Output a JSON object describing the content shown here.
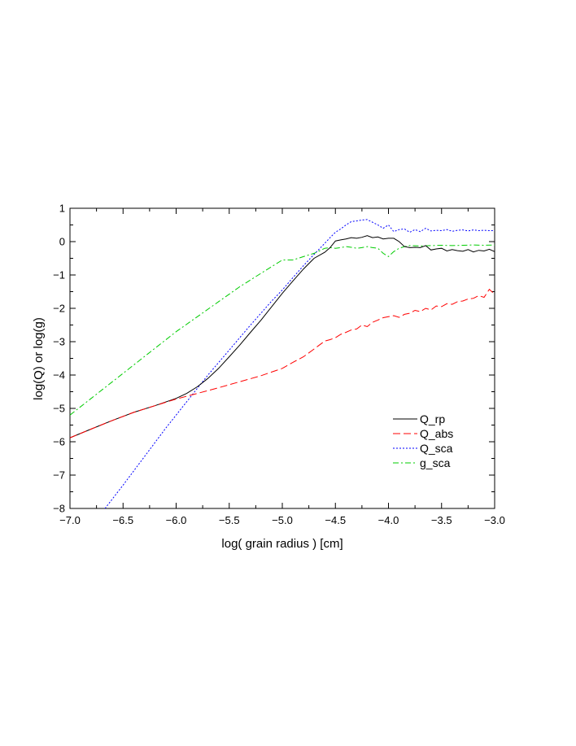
{
  "chart_data": {
    "type": "line",
    "xlabel": "log( grain radius ) [cm]",
    "ylabel": "log(Q)  or  log(g)",
    "xlim": [
      -7.0,
      -3.0
    ],
    "ylim": [
      -8,
      1
    ],
    "x_ticks": [
      -7.0,
      -6.5,
      -6.0,
      -5.5,
      -5.0,
      -4.5,
      -4.0,
      -3.5,
      -3.0
    ],
    "x_tick_labels": [
      "−7.0",
      "−6.5",
      "−6.0",
      "−5.5",
      "−5.0",
      "−4.5",
      "−4.0",
      "−3.5",
      "−3.0"
    ],
    "y_ticks": [
      1,
      0,
      -1,
      -2,
      -3,
      -4,
      -5,
      -6,
      -7,
      -8
    ],
    "y_tick_labels": [
      "1",
      "0",
      "−1",
      "−2",
      "−3",
      "−4",
      "−5",
      "−6",
      "−7",
      "−8"
    ],
    "grid": false,
    "legend_position": "lower-right",
    "series": [
      {
        "name": "Q_rp",
        "color": "#000000",
        "dash": "solid",
        "x": [
          -7.0,
          -6.8,
          -6.6,
          -6.4,
          -6.2,
          -6.0,
          -5.9,
          -5.8,
          -5.7,
          -5.6,
          -5.5,
          -5.4,
          -5.3,
          -5.2,
          -5.1,
          -5.0,
          -4.9,
          -4.8,
          -4.7,
          -4.6,
          -4.55,
          -4.5,
          -4.45,
          -4.4,
          -4.35,
          -4.3,
          -4.25,
          -4.2,
          -4.15,
          -4.1,
          -4.05,
          -4.0,
          -3.95,
          -3.9,
          -3.85,
          -3.8,
          -3.75,
          -3.7,
          -3.65,
          -3.6,
          -3.55,
          -3.5,
          -3.45,
          -3.4,
          -3.35,
          -3.3,
          -3.25,
          -3.2,
          -3.15,
          -3.1,
          -3.05,
          -3.0
        ],
        "y": [
          -5.88,
          -5.62,
          -5.36,
          -5.12,
          -4.92,
          -4.7,
          -4.55,
          -4.35,
          -4.1,
          -3.8,
          -3.45,
          -3.1,
          -2.72,
          -2.35,
          -1.95,
          -1.55,
          -1.18,
          -0.82,
          -0.5,
          -0.32,
          -0.18,
          0.02,
          0.05,
          0.08,
          0.12,
          0.1,
          0.13,
          0.18,
          0.12,
          0.14,
          0.08,
          0.1,
          0.1,
          0.0,
          -0.15,
          -0.18,
          -0.17,
          -0.18,
          -0.12,
          -0.25,
          -0.22,
          -0.2,
          -0.28,
          -0.24,
          -0.27,
          -0.29,
          -0.24,
          -0.31,
          -0.26,
          -0.28,
          -0.23,
          -0.3
        ]
      },
      {
        "name": "Q_abs",
        "color": "#ff0000",
        "dash": "long-dash",
        "x": [
          -7.0,
          -6.8,
          -6.6,
          -6.4,
          -6.2,
          -6.0,
          -5.8,
          -5.6,
          -5.4,
          -5.2,
          -5.0,
          -4.9,
          -4.8,
          -4.7,
          -4.6,
          -4.55,
          -4.5,
          -4.45,
          -4.4,
          -4.35,
          -4.3,
          -4.25,
          -4.2,
          -4.15,
          -4.1,
          -4.05,
          -4.0,
          -3.95,
          -3.9,
          -3.85,
          -3.8,
          -3.75,
          -3.7,
          -3.65,
          -3.6,
          -3.55,
          -3.5,
          -3.45,
          -3.4,
          -3.35,
          -3.3,
          -3.25,
          -3.2,
          -3.15,
          -3.1,
          -3.05,
          -3.0
        ],
        "y": [
          -5.88,
          -5.62,
          -5.36,
          -5.12,
          -4.92,
          -4.72,
          -4.55,
          -4.38,
          -4.2,
          -4.02,
          -3.8,
          -3.62,
          -3.45,
          -3.22,
          -2.98,
          -2.94,
          -2.88,
          -2.78,
          -2.72,
          -2.65,
          -2.62,
          -2.5,
          -2.55,
          -2.42,
          -2.35,
          -2.28,
          -2.25,
          -2.22,
          -2.27,
          -2.18,
          -2.15,
          -2.06,
          -2.1,
          -2.0,
          -2.05,
          -1.93,
          -1.95,
          -1.86,
          -1.88,
          -1.8,
          -1.78,
          -1.72,
          -1.7,
          -1.62,
          -1.67,
          -1.43,
          -1.58
        ]
      },
      {
        "name": "Q_sca",
        "color": "#0000ff",
        "dash": "dotted",
        "x": [
          -6.67,
          -6.5,
          -6.3,
          -6.1,
          -5.9,
          -5.7,
          -5.5,
          -5.3,
          -5.1,
          -5.0,
          -4.9,
          -4.8,
          -4.7,
          -4.6,
          -4.55,
          -4.5,
          -4.45,
          -4.4,
          -4.35,
          -4.3,
          -4.25,
          -4.2,
          -4.15,
          -4.1,
          -4.05,
          -4.0,
          -3.95,
          -3.9,
          -3.85,
          -3.8,
          -3.75,
          -3.7,
          -3.65,
          -3.6,
          -3.55,
          -3.5,
          -3.45,
          -3.4,
          -3.35,
          -3.3,
          -3.25,
          -3.2,
          -3.15,
          -3.1,
          -3.05,
          -3.0
        ],
        "y": [
          -8.0,
          -7.3,
          -6.45,
          -5.6,
          -4.8,
          -4.0,
          -3.25,
          -2.5,
          -1.78,
          -1.45,
          -1.08,
          -0.72,
          -0.38,
          -0.05,
          0.12,
          0.28,
          0.38,
          0.5,
          0.6,
          0.62,
          0.65,
          0.66,
          0.58,
          0.5,
          0.4,
          0.5,
          0.3,
          0.36,
          0.38,
          0.28,
          0.36,
          0.3,
          0.4,
          0.32,
          0.34,
          0.33,
          0.36,
          0.31,
          0.34,
          0.35,
          0.32,
          0.35,
          0.33,
          0.34,
          0.33,
          0.33
        ]
      },
      {
        "name": "g_sca",
        "color": "#00cc00",
        "dash": "dash-dot",
        "x": [
          -7.0,
          -6.8,
          -6.6,
          -6.4,
          -6.2,
          -6.0,
          -5.8,
          -5.6,
          -5.4,
          -5.2,
          -5.0,
          -4.9,
          -4.8,
          -4.7,
          -4.6,
          -4.55,
          -4.5,
          -4.45,
          -4.4,
          -4.35,
          -4.3,
          -4.25,
          -4.2,
          -4.15,
          -4.1,
          -4.05,
          -4.0,
          -3.95,
          -3.9,
          -3.85,
          -3.8,
          -3.7,
          -3.6,
          -3.5,
          -3.4,
          -3.3,
          -3.2,
          -3.1,
          -3.0
        ],
        "y": [
          -5.2,
          -4.7,
          -4.2,
          -3.7,
          -3.2,
          -2.7,
          -2.25,
          -1.8,
          -1.35,
          -0.95,
          -0.55,
          -0.55,
          -0.45,
          -0.35,
          -0.2,
          -0.18,
          -0.2,
          -0.18,
          -0.15,
          -0.17,
          -0.2,
          -0.18,
          -0.15,
          -0.18,
          -0.2,
          -0.35,
          -0.45,
          -0.3,
          -0.2,
          -0.15,
          -0.12,
          -0.13,
          -0.12,
          -0.11,
          -0.12,
          -0.11,
          -0.1,
          -0.11,
          -0.1
        ]
      }
    ]
  }
}
